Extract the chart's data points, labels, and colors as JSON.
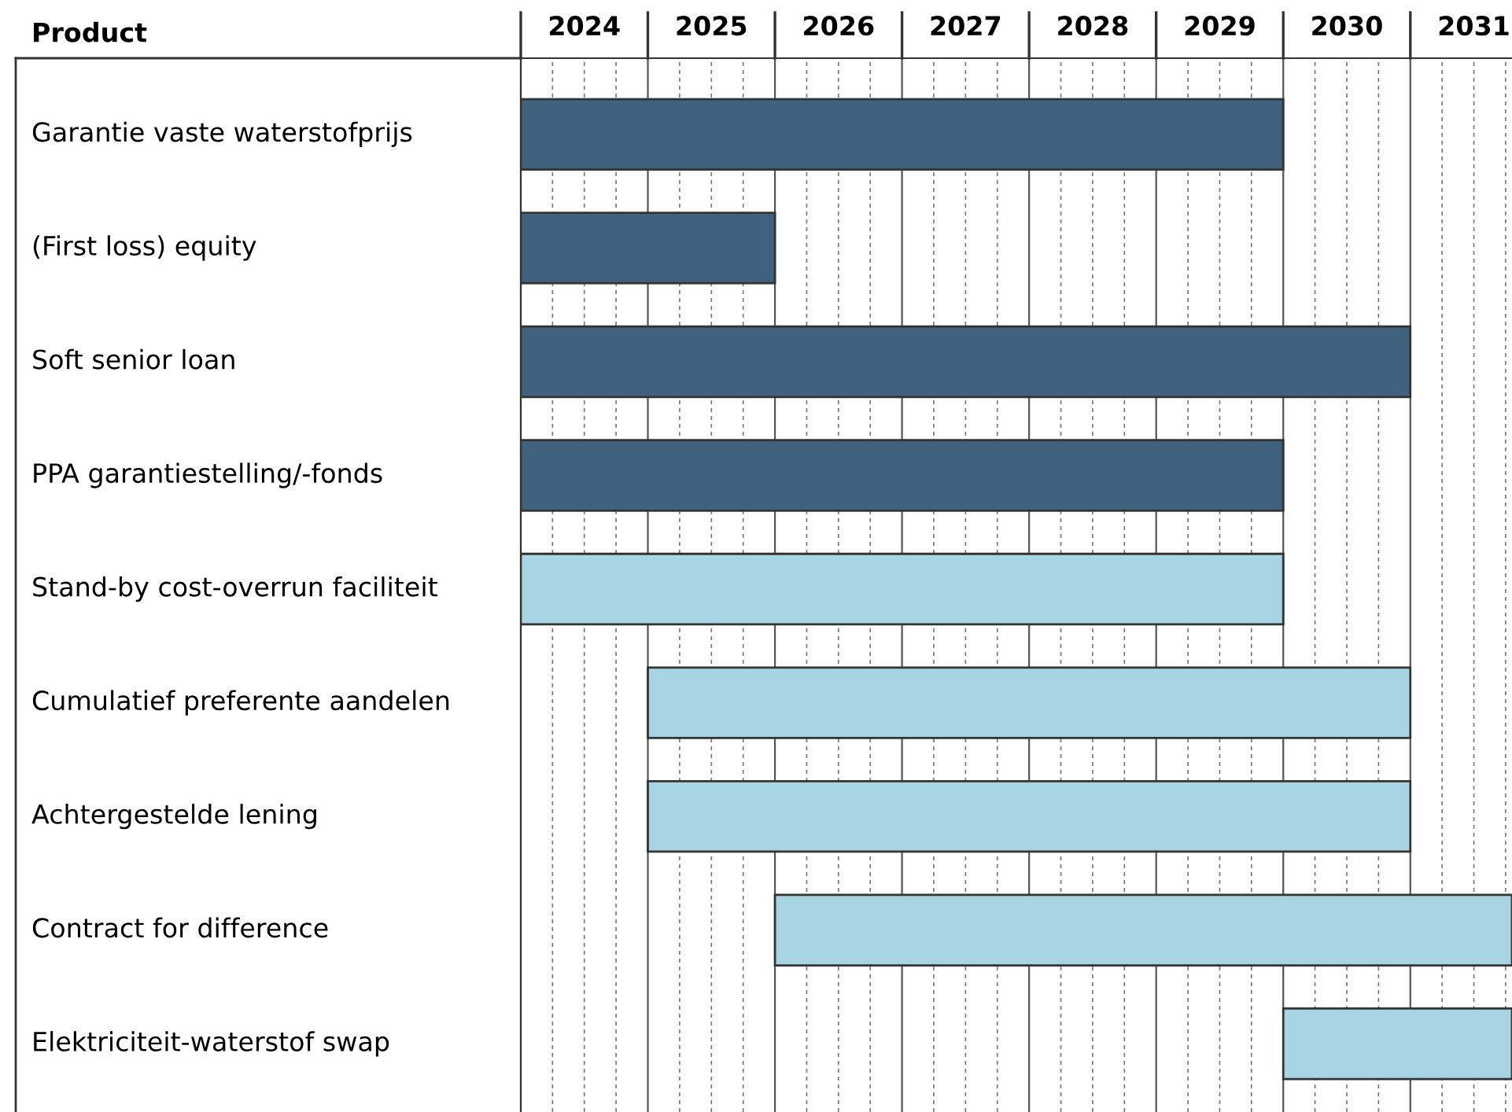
{
  "chart_data": {
    "type": "bar",
    "orientation": "horizontal",
    "annotations": [
      "Product"
    ],
    "categories": [
      "Garantie vaste waterstofprijs",
      "(First loss) equity",
      "Soft senior loan",
      "PPA garantiestelling/-fonds",
      "Stand-by cost-overrun faciliteit",
      "Cumulatief preferente aandelen",
      "Achtergestelde lening",
      "Contract for difference",
      "Elektriciteit-waterstof swap"
    ],
    "base": [
      2024,
      2024,
      2024,
      2024,
      2024,
      2025,
      2025,
      2026,
      2030
    ],
    "values": [
      6,
      2,
      7,
      6,
      6,
      6,
      6,
      5.8,
      1.8
    ],
    "colors": [
      "#3f617e",
      "#3f617e",
      "#3f617e",
      "#3f617e",
      "#a7d4e3",
      "#a7d4e3",
      "#a7d4e3",
      "#a7d4e3",
      "#a7d4e3"
    ],
    "xlim": [
      2024,
      2031.8
    ],
    "xticks": [
      {
        "value": 2024.5,
        "label": "2024"
      },
      {
        "value": 2025.5,
        "label": "2025"
      },
      {
        "value": 2026.5,
        "label": "2026"
      },
      {
        "value": 2027.5,
        "label": "2027"
      },
      {
        "value": 2028.5,
        "label": "2028"
      },
      {
        "value": 2029.5,
        "label": "2029"
      },
      {
        "value": 2030.5,
        "label": "2030"
      },
      {
        "value": 2031.5,
        "label": "2031"
      }
    ],
    "grid": "x"
  }
}
